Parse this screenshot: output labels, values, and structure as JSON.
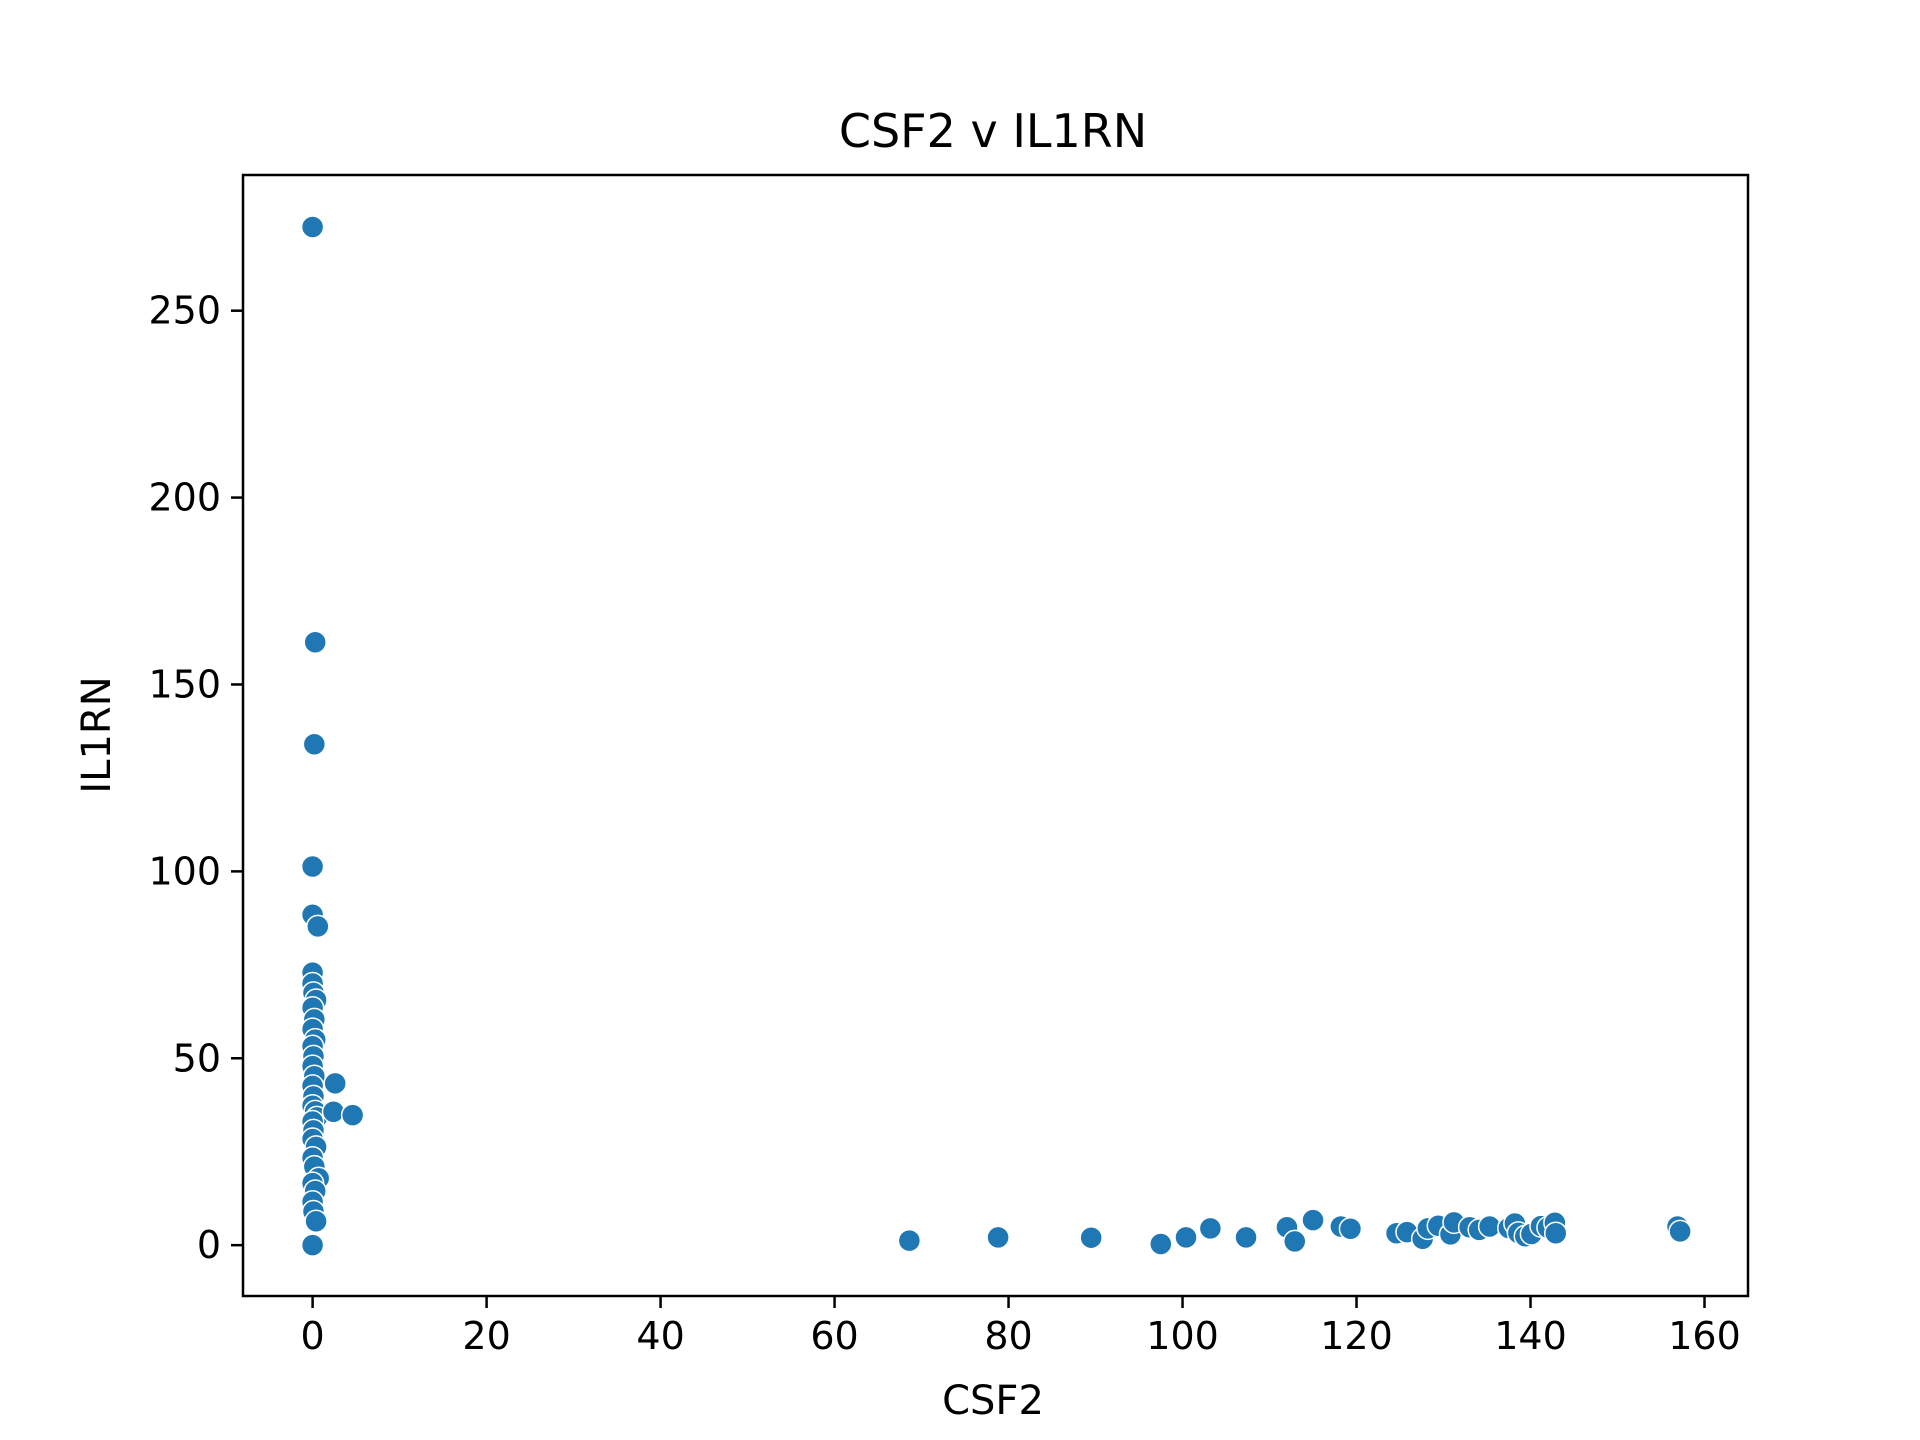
{
  "chart_data": {
    "type": "scatter",
    "title": "CSF2 v IL1RN",
    "xlabel": "CSF2",
    "ylabel": "IL1RN",
    "xlim": [
      -8,
      165
    ],
    "ylim": [
      -13.6,
      286.3
    ],
    "xticks": [
      0,
      20,
      40,
      60,
      80,
      100,
      120,
      140,
      160
    ],
    "yticks": [
      0,
      50,
      100,
      150,
      200,
      250
    ],
    "grid": false,
    "point_color": "#1f77b4",
    "points": [
      {
        "x": 0,
        "y": 272.4
      },
      {
        "x": 0.3,
        "y": 161.3
      },
      {
        "x": 0.2,
        "y": 134.0
      },
      {
        "x": 0,
        "y": 101.3
      },
      {
        "x": 0,
        "y": 88.4
      },
      {
        "x": 0.6,
        "y": 85.3
      },
      {
        "x": 0,
        "y": 72.9
      },
      {
        "x": 0,
        "y": 70.0
      },
      {
        "x": 0.1,
        "y": 67.5
      },
      {
        "x": 0.4,
        "y": 65.6
      },
      {
        "x": 0,
        "y": 63.5
      },
      {
        "x": 0.2,
        "y": 60.4
      },
      {
        "x": 0,
        "y": 57.8
      },
      {
        "x": 0.3,
        "y": 55.0
      },
      {
        "x": 0,
        "y": 53.2
      },
      {
        "x": 0.1,
        "y": 50.5
      },
      {
        "x": 0,
        "y": 47.9
      },
      {
        "x": 0.2,
        "y": 45.2
      },
      {
        "x": 0,
        "y": 42.6
      },
      {
        "x": 0.1,
        "y": 39.8
      },
      {
        "x": 0,
        "y": 37.3
      },
      {
        "x": 0.3,
        "y": 35.8
      },
      {
        "x": 0.5,
        "y": 34.2
      },
      {
        "x": 0,
        "y": 33.1
      },
      {
        "x": 0.1,
        "y": 30.7
      },
      {
        "x": 0,
        "y": 28.4
      },
      {
        "x": 0.4,
        "y": 26.3
      },
      {
        "x": 0,
        "y": 23.4
      },
      {
        "x": 0.2,
        "y": 21.0
      },
      {
        "x": 0.7,
        "y": 17.9
      },
      {
        "x": 0,
        "y": 16.6
      },
      {
        "x": 0.3,
        "y": 14.5
      },
      {
        "x": 0,
        "y": 11.6
      },
      {
        "x": 0.1,
        "y": 9.0
      },
      {
        "x": 0.4,
        "y": 6.4
      },
      {
        "x": 0,
        "y": 0
      },
      {
        "x": 2.6,
        "y": 43.3
      },
      {
        "x": 2.4,
        "y": 35.7
      },
      {
        "x": 4.6,
        "y": 34.8
      },
      {
        "x": 68.6,
        "y": 1.2
      },
      {
        "x": 78.8,
        "y": 2.1
      },
      {
        "x": 89.5,
        "y": 2.0
      },
      {
        "x": 97.5,
        "y": 0.3
      },
      {
        "x": 100.4,
        "y": 2.1
      },
      {
        "x": 103.2,
        "y": 4.5
      },
      {
        "x": 107.3,
        "y": 2.1
      },
      {
        "x": 112.0,
        "y": 4.8
      },
      {
        "x": 112.9,
        "y": 1.0
      },
      {
        "x": 115.0,
        "y": 6.7
      },
      {
        "x": 118.2,
        "y": 5.0
      },
      {
        "x": 119.3,
        "y": 4.4
      },
      {
        "x": 124.6,
        "y": 3.2
      },
      {
        "x": 125.8,
        "y": 3.5
      },
      {
        "x": 127.6,
        "y": 1.7
      },
      {
        "x": 128.2,
        "y": 4.5
      },
      {
        "x": 129.4,
        "y": 5.2
      },
      {
        "x": 130.8,
        "y": 2.9
      },
      {
        "x": 131.2,
        "y": 6.1
      },
      {
        "x": 133.0,
        "y": 4.8
      },
      {
        "x": 134.1,
        "y": 4.1
      },
      {
        "x": 135.3,
        "y": 5.0
      },
      {
        "x": 137.5,
        "y": 4.6
      },
      {
        "x": 138.2,
        "y": 5.8
      },
      {
        "x": 138.6,
        "y": 3.3
      },
      {
        "x": 139.4,
        "y": 2.4
      },
      {
        "x": 140.1,
        "y": 3.0
      },
      {
        "x": 141.2,
        "y": 5.1
      },
      {
        "x": 142.0,
        "y": 4.7
      },
      {
        "x": 142.8,
        "y": 6.0
      },
      {
        "x": 142.9,
        "y": 3.2
      },
      {
        "x": 156.9,
        "y": 5.0
      },
      {
        "x": 157.2,
        "y": 3.7
      }
    ]
  }
}
